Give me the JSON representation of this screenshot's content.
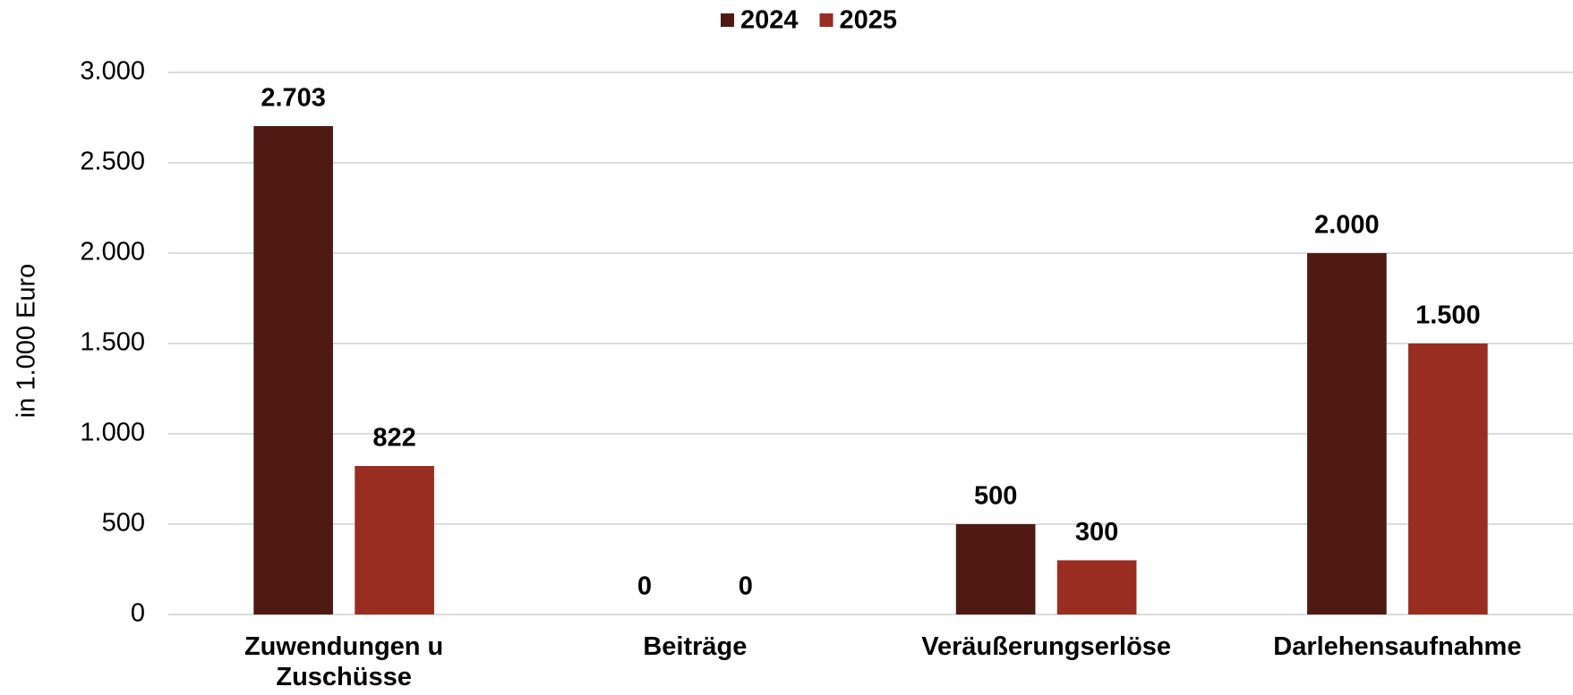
{
  "chart_data": {
    "type": "bar",
    "y_label": "in 1.000 Euro",
    "categories": [
      "Zuwendungen u Zuschüsse",
      "Beiträge",
      "Veräußerungserlöse",
      "Darlehensaufnahme"
    ],
    "series": [
      {
        "name": "2024",
        "color": "#4e1a12",
        "values": [
          2703,
          0,
          500,
          2000
        ],
        "value_labels": [
          "2.703",
          "0",
          "500",
          "2.000"
        ]
      },
      {
        "name": "2025",
        "color": "#992d22",
        "values": [
          822,
          0,
          300,
          1500
        ],
        "value_labels": [
          "822",
          "0",
          "300",
          "1.500"
        ]
      }
    ],
    "ylim": [
      0,
      3000
    ],
    "yticks": [
      0,
      {
        "value": 500,
        "label": "500"
      },
      {
        "value": 1000,
        "label": "1.000"
      },
      {
        "value": 1500,
        "label": "1.500"
      },
      {
        "value": 2000,
        "label": "2.000"
      },
      {
        "value": 2500,
        "label": "2.500"
      },
      {
        "value": 3000,
        "label": "3.000"
      }
    ],
    "grid": true,
    "legend": "top"
  }
}
